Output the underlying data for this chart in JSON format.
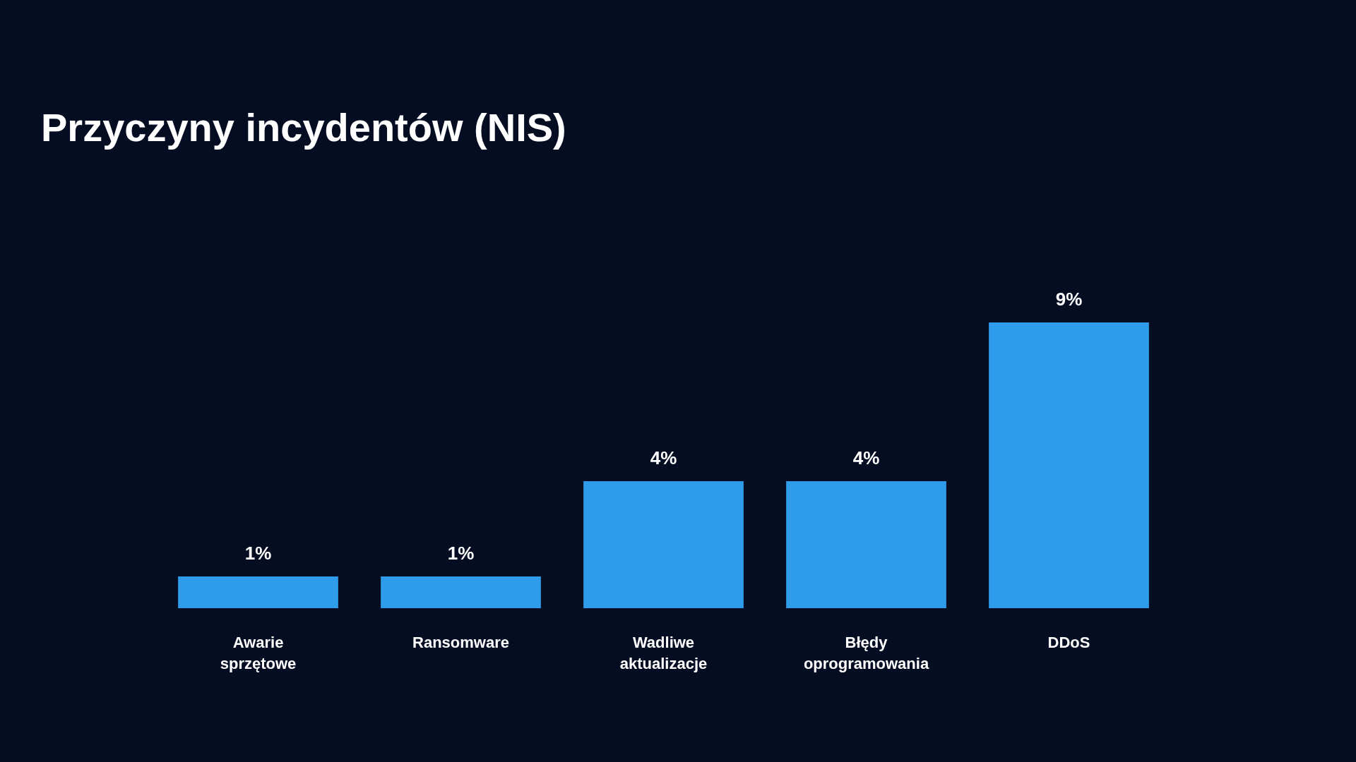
{
  "chart_data": {
    "type": "bar",
    "title": "Przyczyny incydentów (NIS)",
    "categories": [
      "Awarie sprzętowe",
      "Ransomware",
      "Wadliwe aktualizacje",
      "Błędy oprogramowania",
      "DDoS"
    ],
    "values": [
      1,
      1,
      4,
      4,
      9
    ],
    "value_labels": [
      "1%",
      "1%",
      "4%",
      "4%",
      "9%"
    ],
    "color": "#2f9ceb"
  }
}
